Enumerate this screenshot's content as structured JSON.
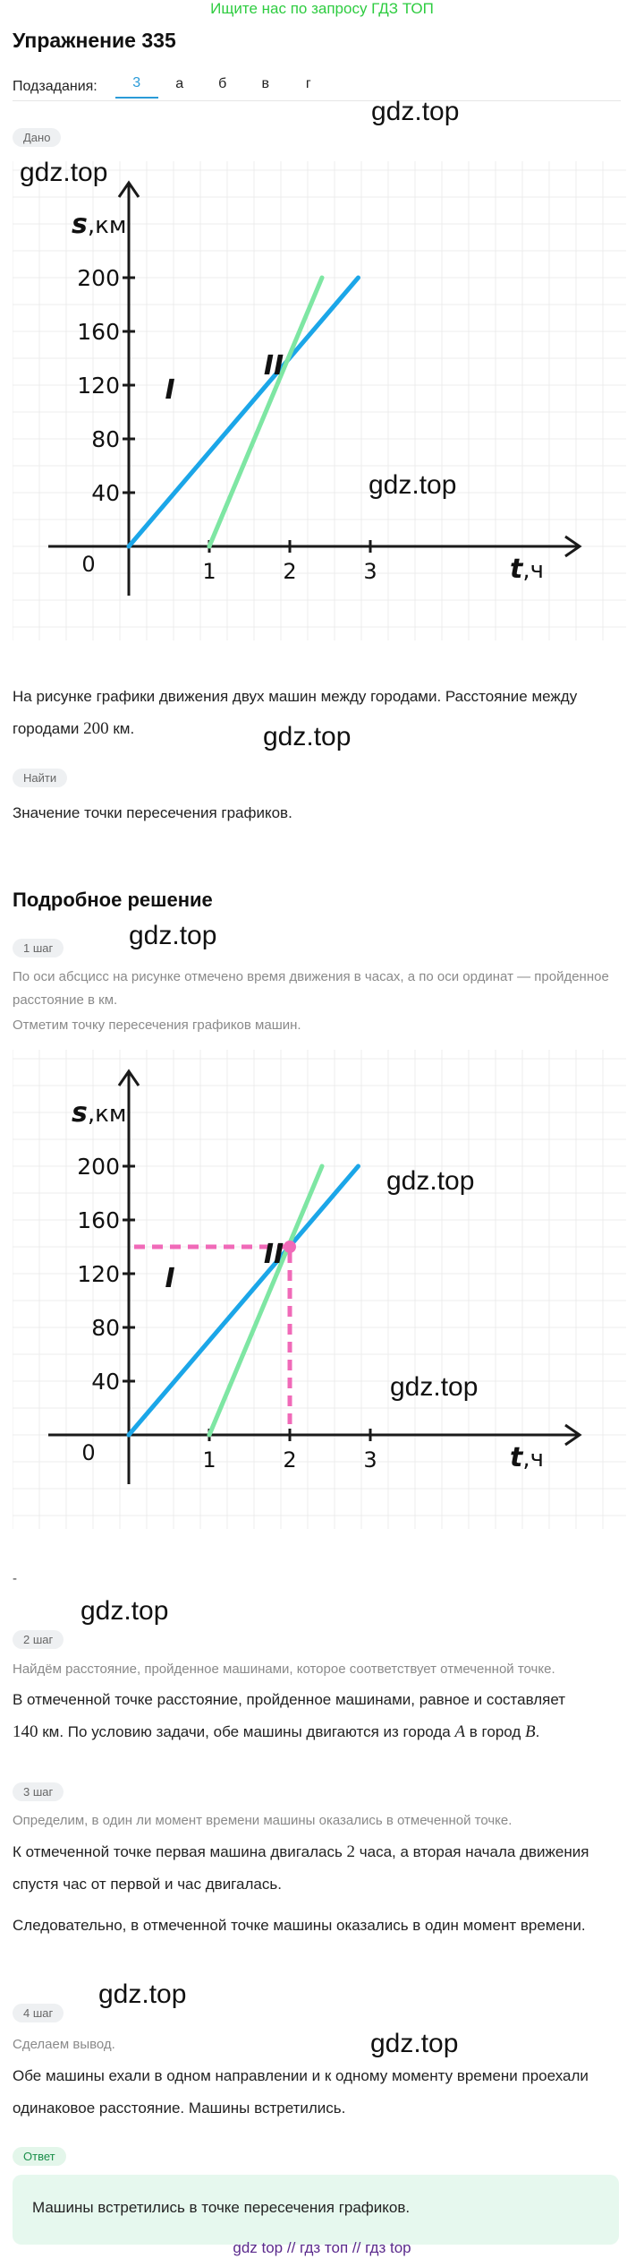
{
  "banner": "Ищите нас по запросу ГДЗ ТОП",
  "title": "Упражнение 335",
  "subtasks": {
    "label": "Подзадания:",
    "tabs": [
      "3",
      "а",
      "б",
      "в",
      "г"
    ],
    "active": 0
  },
  "watermark": "gdz.top",
  "given": {
    "badge": "Дано",
    "text_part1": "На рисунке графики движения двух машин между городами. Расстояние между городами ",
    "distance": "200",
    "text_part2": " км."
  },
  "find": {
    "badge": "Найти",
    "text": "Значение точки пересечения графиков."
  },
  "chart_data": [
    {
      "type": "line",
      "xlabel": "t",
      "xunit": "ч",
      "ylabel": "s",
      "yunit": "км",
      "x_ticks": [
        "1",
        "2",
        "3"
      ],
      "y_ticks": [
        "40",
        "80",
        "120",
        "160",
        "200"
      ],
      "origin_label": "0",
      "xlim": [
        0,
        5.6
      ],
      "ylim": [
        0,
        200
      ],
      "grid": true,
      "series": [
        {
          "name": "I",
          "color": "#1ba6e8",
          "x": [
            0,
            2.85
          ],
          "y": [
            0,
            200
          ]
        },
        {
          "name": "II",
          "color": "#7ee6a3",
          "x": [
            1,
            2.4
          ],
          "y": [
            0,
            200
          ]
        }
      ]
    },
    {
      "type": "line",
      "xlabel": "t",
      "xunit": "ч",
      "ylabel": "s",
      "yunit": "км",
      "x_ticks": [
        "1",
        "2",
        "3"
      ],
      "y_ticks": [
        "40",
        "80",
        "120",
        "160",
        "200"
      ],
      "origin_label": "0",
      "xlim": [
        0,
        5.6
      ],
      "ylim": [
        0,
        200
      ],
      "grid": true,
      "series": [
        {
          "name": "I",
          "color": "#1ba6e8",
          "x": [
            0,
            2.85
          ],
          "y": [
            0,
            200
          ]
        },
        {
          "name": "II",
          "color": "#7ee6a3",
          "x": [
            1,
            2.4
          ],
          "y": [
            0,
            200
          ]
        }
      ],
      "intersection": {
        "x": 2,
        "y": 140,
        "color": "#f06ab8"
      }
    }
  ],
  "solution": {
    "title": "Подробное решение",
    "dash": "-",
    "step1": {
      "badge": "1 шаг",
      "hint": "По оси абсцисс на рисунке отмечено время движения в часах, а по оси ординат — пройденное расстояние в км.",
      "hint2": "Отметим точку пересечения графиков машин."
    },
    "step2": {
      "badge": "2 шаг",
      "hint": "Найдём расстояние, пройденное машинами, которое соответствует отмеченной точке.",
      "text_part1": "В отмеченной точке расстояние, пройденное машинами, равное и составляет",
      "value": "140",
      "text_part2": " км. По условию задачи, обе машины двигаются из города ",
      "cityA": "A",
      "text_part3": " в город ",
      "cityB": "B",
      "text_part4": "."
    },
    "step3": {
      "badge": "3 шаг",
      "hint": "Определим, в один ли момент времени машины оказались в отмеченной точке.",
      "text_part1": "К отмеченной точке первая машина двигалась ",
      "hours": "2",
      "text_part2": " часа, а вторая начала движения спустя час от первой и час двигалась.",
      "text2": "Следовательно, в отмеченной точке машины оказались в один момент времени."
    },
    "step4": {
      "badge": "4 шаг",
      "hint": "Сделаем вывод.",
      "text": "Обе машины ехали в одном направлении и к одному моменту времени проехали одинаковое расстояние. Машины встретились."
    }
  },
  "answer": {
    "badge": "Ответ",
    "text": "Машины встретились в точке пересечения графиков."
  },
  "footer": {
    "links": [
      "gdz top",
      "гдз топ",
      "гдз top"
    ],
    "separator": "//"
  }
}
